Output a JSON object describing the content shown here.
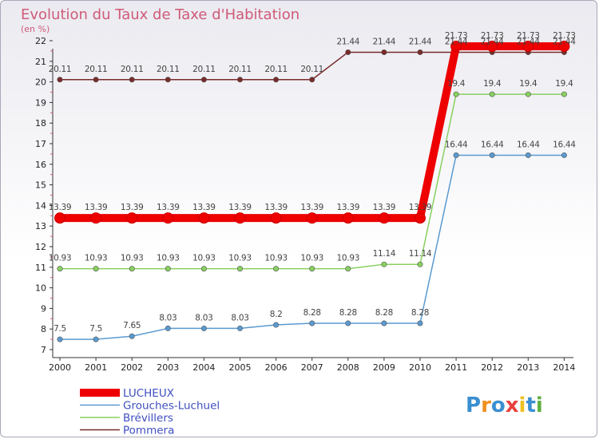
{
  "chart_data": {
    "type": "line",
    "title": "Evolution du Taux de Taxe d'Habitation",
    "ylabel": "(en %)",
    "xlabel": "",
    "categories": [
      "2000",
      "2001",
      "2002",
      "2003",
      "2004",
      "2005",
      "2006",
      "2007",
      "2008",
      "2009",
      "2010",
      "2011",
      "2012",
      "2013",
      "2014"
    ],
    "ylim": [
      7,
      22
    ],
    "yticks": [
      "7",
      "8",
      "9",
      "10",
      "11",
      "12",
      "13",
      "14",
      "15",
      "16",
      "17",
      "18",
      "19",
      "20",
      "21",
      "22"
    ],
    "legend_position": "bottom-left",
    "grid": false,
    "series": [
      {
        "name": "LUCHEUX",
        "color": "#ee0000",
        "values": [
          13.39,
          13.39,
          13.39,
          13.39,
          13.39,
          13.39,
          13.39,
          13.39,
          13.39,
          13.39,
          13.39,
          21.73,
          21.73,
          21.73,
          21.73
        ],
        "labels": [
          "13.39",
          "13.39",
          "13.39",
          "13.39",
          "13.39",
          "13.39",
          "13.39",
          "13.39",
          "13.39",
          "13.39",
          "13.39",
          "21.73",
          "21.73",
          "21.73",
          "21.73"
        ]
      },
      {
        "name": "Grouches-Luchuel",
        "color": "#5a9ad0",
        "values": [
          7.5,
          7.5,
          7.65,
          8.03,
          8.03,
          8.03,
          8.2,
          8.28,
          8.28,
          8.28,
          8.28,
          16.44,
          16.44,
          16.44,
          16.44
        ],
        "labels": [
          "7.5",
          "7.5",
          "7.65",
          "8.03",
          "8.03",
          "8.03",
          "8.2",
          "8.28",
          "8.28",
          "8.28",
          "8.28",
          "16.44",
          "16.44",
          "16.44",
          "16.44"
        ]
      },
      {
        "name": "Brévillers",
        "color": "#88d060",
        "values": [
          10.93,
          10.93,
          10.93,
          10.93,
          10.93,
          10.93,
          10.93,
          10.93,
          10.93,
          11.14,
          11.14,
          19.4,
          19.4,
          19.4,
          19.4
        ],
        "labels": [
          "10.93",
          "10.93",
          "10.93",
          "10.93",
          "10.93",
          "10.93",
          "10.93",
          "10.93",
          "10.93",
          "11.14",
          "11.14",
          "19.4",
          "19.4",
          "19.4",
          "19.4"
        ]
      },
      {
        "name": "Pommera",
        "color": "#7a2a2a",
        "values": [
          20.11,
          20.11,
          20.11,
          20.11,
          20.11,
          20.11,
          20.11,
          20.11,
          21.44,
          21.44,
          21.44,
          21.44,
          21.44,
          21.44,
          21.44
        ],
        "labels": [
          "20.11",
          "20.11",
          "20.11",
          "20.11",
          "20.11",
          "20.11",
          "20.11",
          "20.11",
          "21.44",
          "21.44",
          "21.44",
          "21.44",
          "21.44",
          "21.44",
          "21.44"
        ]
      }
    ]
  },
  "logo": {
    "letters": [
      "P",
      "r",
      "o",
      "x",
      "i",
      "t",
      "i"
    ],
    "colors": [
      "#3a8fd0",
      "#f09020",
      "#3a8fd0",
      "#e84040",
      "#f0c020",
      "#3a8fd0",
      "#60b040"
    ]
  }
}
